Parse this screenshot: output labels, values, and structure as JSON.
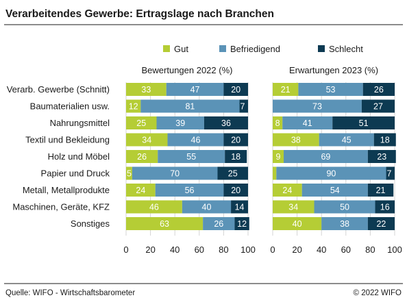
{
  "page": {
    "title": "Verarbeitendes Gewerbe: Ertragslage nach Branchen",
    "source": "Quelle: WIFO - Wirtschaftsbarometer",
    "copyright": "© 2022 WIFO"
  },
  "colors": {
    "gut": "#b5cd35",
    "befriedigend": "#5b93b7",
    "schlecht": "#0d3a52",
    "grid": "#d4d4d4",
    "text": "#1a1a1a"
  },
  "chart_data": [
    {
      "type": "bar",
      "orientation": "horizontal",
      "stacked": true,
      "title": "Bewertungen 2022 (%)",
      "xlim": [
        0,
        100
      ],
      "xticks": [
        "0",
        "20",
        "40",
        "60",
        "80",
        "100"
      ],
      "grid": true,
      "legend": "top",
      "categories": [
        "Verarb. Gewerbe (Schnitt)",
        "Baumaterialien usw.",
        "Nahrungsmittel",
        "Textil und Bekleidung",
        "Holz und Möbel",
        "Papier und Druck",
        "Metall, Metallprodukte",
        "Maschinen, Geräte, KFZ",
        "Sonstiges"
      ],
      "series": [
        {
          "name": "Gut",
          "values": [
            33,
            12,
            25,
            34,
            26,
            5,
            24,
            46,
            63
          ]
        },
        {
          "name": "Befriedigend",
          "values": [
            47,
            81,
            39,
            46,
            55,
            70,
            56,
            40,
            26
          ]
        },
        {
          "name": "Schlecht",
          "values": [
            20,
            7,
            36,
            20,
            18,
            25,
            20,
            14,
            12
          ]
        }
      ]
    },
    {
      "type": "bar",
      "orientation": "horizontal",
      "stacked": true,
      "title": "Erwartungen 2023 (%)",
      "xlim": [
        0,
        100
      ],
      "xticks": [
        "0",
        "20",
        "40",
        "60",
        "80",
        "100"
      ],
      "grid": true,
      "legend": "top",
      "categories": [
        "Verarb. Gewerbe (Schnitt)",
        "Baumaterialien usw.",
        "Nahrungsmittel",
        "Textil und Bekleidung",
        "Holz und Möbel",
        "Papier und Druck",
        "Metall, Metallprodukte",
        "Maschinen, Geräte, KFZ",
        "Sonstiges"
      ],
      "series": [
        {
          "name": "Gut",
          "values": [
            21,
            0,
            8,
            38,
            9,
            3,
            24,
            34,
            40
          ]
        },
        {
          "name": "Befriedigend",
          "values": [
            53,
            73,
            41,
            45,
            69,
            90,
            54,
            50,
            38
          ]
        },
        {
          "name": "Schlecht",
          "values": [
            26,
            27,
            51,
            18,
            23,
            7,
            21,
            16,
            22
          ]
        }
      ],
      "value_labels": [
        [
          "21",
          "53",
          "26"
        ],
        [
          "",
          "73",
          "27"
        ],
        [
          "8",
          "41",
          "51"
        ],
        [
          "38",
          "45",
          "18"
        ],
        [
          "9",
          "69",
          "23"
        ],
        [
          "",
          "90",
          "7"
        ],
        [
          "24",
          "54",
          "21"
        ],
        [
          "34",
          "50",
          "16"
        ],
        [
          "40",
          "38",
          "22"
        ]
      ]
    }
  ]
}
